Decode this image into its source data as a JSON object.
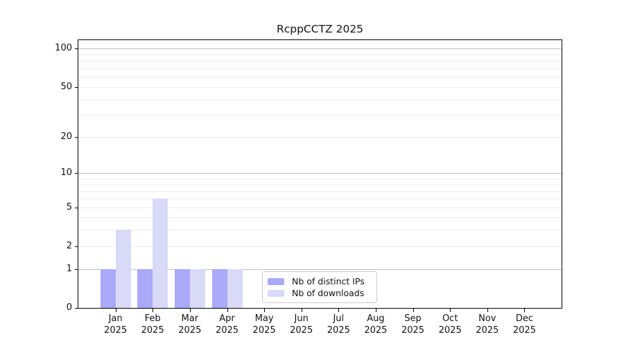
{
  "chart_data": {
    "type": "bar",
    "title": "RcppCCTZ 2025",
    "scale": "log1p",
    "year": "2025",
    "categories": [
      "Jan",
      "Feb",
      "Mar",
      "Apr",
      "May",
      "Jun",
      "Jul",
      "Aug",
      "Sep",
      "Oct",
      "Nov",
      "Dec"
    ],
    "series": [
      {
        "name": "Nb of distinct IPs",
        "color": "#a9a9f8",
        "values": [
          1,
          1,
          1,
          1,
          0,
          0,
          0,
          0,
          0,
          0,
          0,
          0
        ]
      },
      {
        "name": "Nb of downloads",
        "color": "#d9d9f8",
        "values": [
          3,
          6,
          1,
          1,
          0,
          0,
          0,
          0,
          0,
          0,
          0,
          0
        ]
      }
    ],
    "yticks": [
      0,
      1,
      2,
      5,
      10,
      20,
      50,
      100
    ],
    "major_gridlines": [
      1,
      10,
      100
    ],
    "minor_gridlines": [
      2,
      3,
      4,
      5,
      6,
      7,
      8,
      9,
      20,
      30,
      40,
      50,
      60,
      70,
      80,
      90
    ],
    "ylim": [
      0,
      116.5
    ],
    "xlabel": "",
    "ylabel": "",
    "legend_position": "inside-bottom-center",
    "grid": "horizontal"
  },
  "colors": {
    "axis": "#000000",
    "major_grid": "#bfbfbf",
    "minor_grid": "#ededed",
    "background": "#ffffff"
  }
}
